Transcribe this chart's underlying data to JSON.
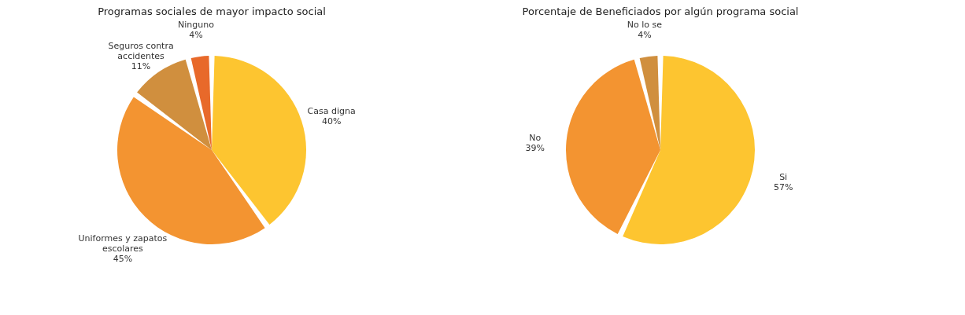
{
  "chart_data": [
    {
      "type": "pie",
      "title": "Programas sociales de mayor impacto social",
      "categories": [
        "Casa digna",
        "Uniformes y zapatos escolares",
        "Seguros contra accidentes",
        "Ninguno"
      ],
      "values": [
        40,
        45,
        11,
        4
      ],
      "value_labels": [
        "40%",
        "45%",
        "11%",
        "4%"
      ],
      "colors": [
        "#fdc530",
        "#f39431",
        "#d08f3e",
        "#e8692a"
      ],
      "legend": false
    },
    {
      "type": "pie",
      "title": "Porcentaje de Beneficiados por algún programa social",
      "categories": [
        "Si",
        "No",
        "No lo se"
      ],
      "values": [
        57,
        39,
        4
      ],
      "value_labels": [
        "57%",
        "39%",
        "4%"
      ],
      "colors": [
        "#fdc530",
        "#f39431",
        "#d08f3e"
      ],
      "legend": false
    }
  ]
}
